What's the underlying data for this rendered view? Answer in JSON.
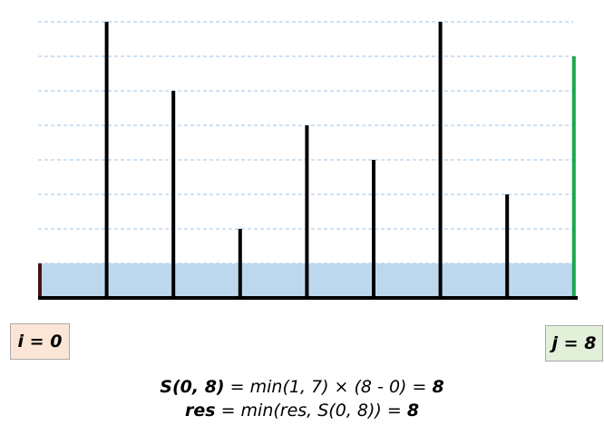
{
  "heights": [
    1,
    8,
    6,
    2,
    5,
    4,
    8,
    3,
    7
  ],
  "max_height": 8,
  "pointers": {
    "i_label": "i = 0",
    "j_label": "j = 8",
    "i_index": 0,
    "j_index": 8
  },
  "water_level": 1,
  "formula": {
    "s_term": "S(0, 8)",
    "s_middle": " = min(1, 7) × (8 - 0) = ",
    "s_result": "8",
    "res_term": "res",
    "res_middle": " = min(res, S(0, 8)) = ",
    "res_result": "8"
  },
  "colors": {
    "bar": "#000000",
    "left_bar": "#4a1414",
    "right_bar": "#1aa84c",
    "water": "#bdd7ee",
    "gridline": "#9dc3e6",
    "i_box": "#fbe5d6",
    "j_box": "#e2f0d9"
  }
}
